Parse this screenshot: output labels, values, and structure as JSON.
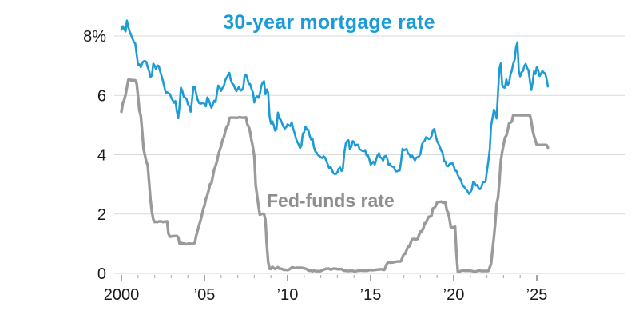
{
  "labels": {
    "title": "30-year mortgage rate",
    "fed_funds": "Fed-funds rate"
  },
  "chart_data": {
    "type": "line",
    "title": "30-year mortgage rate",
    "xlabel": "",
    "ylabel": "",
    "xlim": [
      1999.8,
      2025.75
    ],
    "ylim": [
      0,
      8
    ],
    "grid": "horizontal",
    "legend": "inline-labels",
    "colors": {
      "mortgage": "#1d9bd7",
      "fed_line": "#9a9a9a",
      "fed_label": "#8e8e8e",
      "grid": "#d9d9d9",
      "axis_text": "#1a1a1a"
    },
    "y_ticks": [
      {
        "value": 0,
        "label": "0"
      },
      {
        "value": 2,
        "label": "2"
      },
      {
        "value": 4,
        "label": "4"
      },
      {
        "value": 6,
        "label": "6"
      },
      {
        "value": 8,
        "label": "8%"
      }
    ],
    "x_ticks": [
      {
        "value": 2000,
        "label": "2000"
      },
      {
        "value": 2005,
        "label": "’05"
      },
      {
        "value": 2010,
        "label": "’10"
      },
      {
        "value": 2015,
        "label": "’15"
      },
      {
        "value": 2020,
        "label": "’20"
      },
      {
        "value": 2025,
        "label": "’25"
      }
    ],
    "series": [
      {
        "id": "mortgage-rate-line",
        "name": "30-year mortgage rate",
        "color": "#1d9bd7",
        "stroke_width": 2.6,
        "x_start": 2000.0,
        "x_step": 0.083333,
        "values": [
          8.21,
          8.33,
          8.24,
          8.15,
          8.52,
          8.29,
          8.15,
          8.03,
          7.91,
          7.8,
          7.75,
          7.38,
          7.03,
          7.05,
          6.95,
          7.08,
          7.15,
          7.16,
          7.13,
          6.95,
          6.82,
          6.62,
          6.66,
          7.07,
          7.0,
          6.89,
          7.01,
          6.99,
          6.81,
          6.65,
          6.49,
          6.29,
          6.09,
          6.11,
          6.07,
          6.05,
          5.92,
          5.84,
          5.75,
          5.81,
          5.48,
          5.23,
          5.63,
          6.26,
          6.15,
          5.95,
          5.93,
          5.88,
          5.71,
          5.64,
          5.45,
          5.83,
          6.27,
          6.29,
          6.06,
          5.87,
          5.75,
          5.72,
          5.73,
          5.75,
          5.71,
          5.63,
          5.93,
          5.86,
          5.72,
          5.58,
          5.7,
          5.82,
          5.77,
          6.07,
          6.33,
          6.27,
          6.15,
          6.25,
          6.32,
          6.51,
          6.6,
          6.68,
          6.76,
          6.52,
          6.4,
          6.36,
          6.24,
          6.14,
          6.22,
          6.29,
          6.16,
          6.18,
          6.26,
          6.66,
          6.7,
          6.57,
          6.38,
          6.38,
          6.21,
          6.1,
          5.76,
          5.92,
          5.97,
          5.92,
          6.04,
          6.32,
          6.43,
          6.48,
          6.04,
          6.2,
          6.09,
          5.29,
          5.05,
          5.13,
          5.0,
          4.81,
          4.86,
          5.42,
          5.22,
          5.19,
          5.06,
          4.95,
          4.88,
          4.93,
          5.03,
          4.99,
          4.97,
          5.1,
          4.89,
          4.74,
          4.56,
          4.43,
          4.35,
          4.23,
          4.3,
          4.71,
          4.76,
          4.95,
          4.84,
          4.84,
          4.64,
          4.51,
          4.55,
          4.27,
          4.11,
          4.07,
          3.99,
          3.96,
          3.92,
          3.89,
          3.95,
          3.91,
          3.8,
          3.68,
          3.55,
          3.6,
          3.5,
          3.38,
          3.35,
          3.35,
          3.41,
          3.53,
          3.57,
          3.45,
          3.54,
          4.07,
          4.37,
          4.46,
          4.49,
          4.19,
          4.26,
          4.46,
          4.43,
          4.3,
          4.34,
          4.34,
          4.19,
          4.16,
          4.13,
          4.12,
          4.16,
          3.98,
          3.99,
          3.86,
          3.67,
          3.71,
          3.77,
          3.67,
          3.84,
          3.98,
          4.05,
          3.91,
          3.89,
          3.8,
          3.94,
          3.96,
          3.87,
          3.66,
          3.69,
          3.61,
          3.6,
          3.57,
          3.44,
          3.44,
          3.46,
          3.47,
          3.77,
          4.2,
          4.15,
          4.17,
          4.2,
          4.05,
          4.01,
          3.9,
          3.97,
          3.89,
          3.81,
          3.9,
          3.92,
          3.95,
          4.03,
          4.33,
          4.44,
          4.47,
          4.59,
          4.57,
          4.53,
          4.55,
          4.63,
          4.83,
          4.87,
          4.64,
          4.46,
          4.37,
          4.27,
          4.14,
          4.07,
          3.8,
          3.77,
          3.62,
          3.61,
          3.69,
          3.7,
          3.72,
          3.62,
          3.47,
          3.45,
          3.31,
          3.23,
          3.16,
          3.02,
          2.94,
          2.89,
          2.83,
          2.77,
          2.68,
          2.74,
          2.81,
          3.08,
          3.06,
          2.96,
          2.98,
          2.87,
          2.84,
          2.9,
          3.07,
          3.07,
          3.1,
          3.45,
          3.76,
          4.17,
          4.98,
          5.23,
          5.52,
          5.41,
          5.22,
          6.11,
          6.9,
          7.08,
          6.36,
          6.27,
          6.26,
          6.54,
          6.34,
          6.43,
          6.71,
          6.84,
          7.07,
          7.2,
          7.62,
          7.79,
          6.82,
          6.64,
          6.78,
          6.82,
          6.99,
          7.06,
          6.92,
          6.85,
          6.5,
          6.18,
          6.43,
          6.81,
          6.72,
          6.96,
          6.85,
          6.65,
          6.73,
          6.82,
          6.77,
          6.74,
          6.58,
          6.3
        ]
      },
      {
        "id": "fed-funds-line",
        "name": "Fed-funds rate",
        "color": "#9a9a9a",
        "stroke_width": 3.4,
        "x_start": 2000.0,
        "x_step": 0.083333,
        "values": [
          5.45,
          5.73,
          5.85,
          6.02,
          6.27,
          6.53,
          6.54,
          6.5,
          6.52,
          6.51,
          6.51,
          6.4,
          5.98,
          5.49,
          5.31,
          4.8,
          4.21,
          3.97,
          3.77,
          3.65,
          3.07,
          2.49,
          2.09,
          1.82,
          1.73,
          1.74,
          1.73,
          1.75,
          1.75,
          1.75,
          1.73,
          1.74,
          1.75,
          1.75,
          1.34,
          1.24,
          1.24,
          1.26,
          1.25,
          1.26,
          1.26,
          1.22,
          1.01,
          1.03,
          1.01,
          1.01,
          1.0,
          0.98,
          1.0,
          1.01,
          1.0,
          1.0,
          1.0,
          1.03,
          1.26,
          1.43,
          1.61,
          1.76,
          1.93,
          2.16,
          2.28,
          2.5,
          2.63,
          2.79,
          3.0,
          3.04,
          3.26,
          3.5,
          3.62,
          3.78,
          4.0,
          4.16,
          4.29,
          4.49,
          4.59,
          4.79,
          4.94,
          4.99,
          5.24,
          5.25,
          5.25,
          5.25,
          5.25,
          5.24,
          5.25,
          5.26,
          5.26,
          5.25,
          5.25,
          5.25,
          5.26,
          5.02,
          4.94,
          4.76,
          4.49,
          4.24,
          3.94,
          2.98,
          2.61,
          2.28,
          1.98,
          2.0,
          2.01,
          2.0,
          1.81,
          0.97,
          0.39,
          0.16,
          0.15,
          0.22,
          0.18,
          0.15,
          0.18,
          0.21,
          0.16,
          0.16,
          0.15,
          0.12,
          0.12,
          0.12,
          0.11,
          0.13,
          0.16,
          0.2,
          0.2,
          0.18,
          0.18,
          0.19,
          0.19,
          0.19,
          0.19,
          0.18,
          0.17,
          0.16,
          0.14,
          0.1,
          0.09,
          0.09,
          0.07,
          0.1,
          0.08,
          0.07,
          0.08,
          0.07,
          0.08,
          0.1,
          0.13,
          0.14,
          0.16,
          0.16,
          0.16,
          0.13,
          0.14,
          0.16,
          0.16,
          0.16,
          0.14,
          0.15,
          0.14,
          0.15,
          0.11,
          0.09,
          0.09,
          0.08,
          0.08,
          0.09,
          0.08,
          0.09,
          0.07,
          0.07,
          0.08,
          0.09,
          0.09,
          0.1,
          0.09,
          0.09,
          0.09,
          0.09,
          0.09,
          0.12,
          0.11,
          0.11,
          0.11,
          0.12,
          0.12,
          0.13,
          0.13,
          0.14,
          0.14,
          0.12,
          0.12,
          0.24,
          0.34,
          0.38,
          0.36,
          0.37,
          0.37,
          0.38,
          0.39,
          0.4,
          0.4,
          0.4,
          0.41,
          0.54,
          0.65,
          0.66,
          0.79,
          0.9,
          0.91,
          1.04,
          1.15,
          1.16,
          1.15,
          1.15,
          1.16,
          1.3,
          1.41,
          1.42,
          1.51,
          1.69,
          1.7,
          1.82,
          1.91,
          1.91,
          1.95,
          2.19,
          2.2,
          2.27,
          2.4,
          2.4,
          2.41,
          2.42,
          2.39,
          2.38,
          2.4,
          2.13,
          2.04,
          1.83,
          1.55,
          1.55,
          1.55,
          1.58,
          0.65,
          0.05,
          0.05,
          0.08,
          0.09,
          0.1,
          0.09,
          0.09,
          0.09,
          0.09,
          0.09,
          0.08,
          0.07,
          0.07,
          0.06,
          0.08,
          0.1,
          0.09,
          0.08,
          0.08,
          0.08,
          0.08,
          0.08,
          0.08,
          0.2,
          0.33,
          0.77,
          1.21,
          1.68,
          2.33,
          2.56,
          3.08,
          3.78,
          4.1,
          4.33,
          4.57,
          4.65,
          4.83,
          5.06,
          5.08,
          5.12,
          5.33,
          5.33,
          5.33,
          5.33,
          5.33,
          5.33,
          5.33,
          5.33,
          5.33,
          5.33,
          5.33,
          5.33,
          5.33,
          5.13,
          4.83,
          4.64,
          4.48,
          4.33,
          4.33,
          4.33,
          4.33,
          4.33,
          4.33,
          4.33,
          4.33,
          4.24
        ]
      }
    ]
  }
}
